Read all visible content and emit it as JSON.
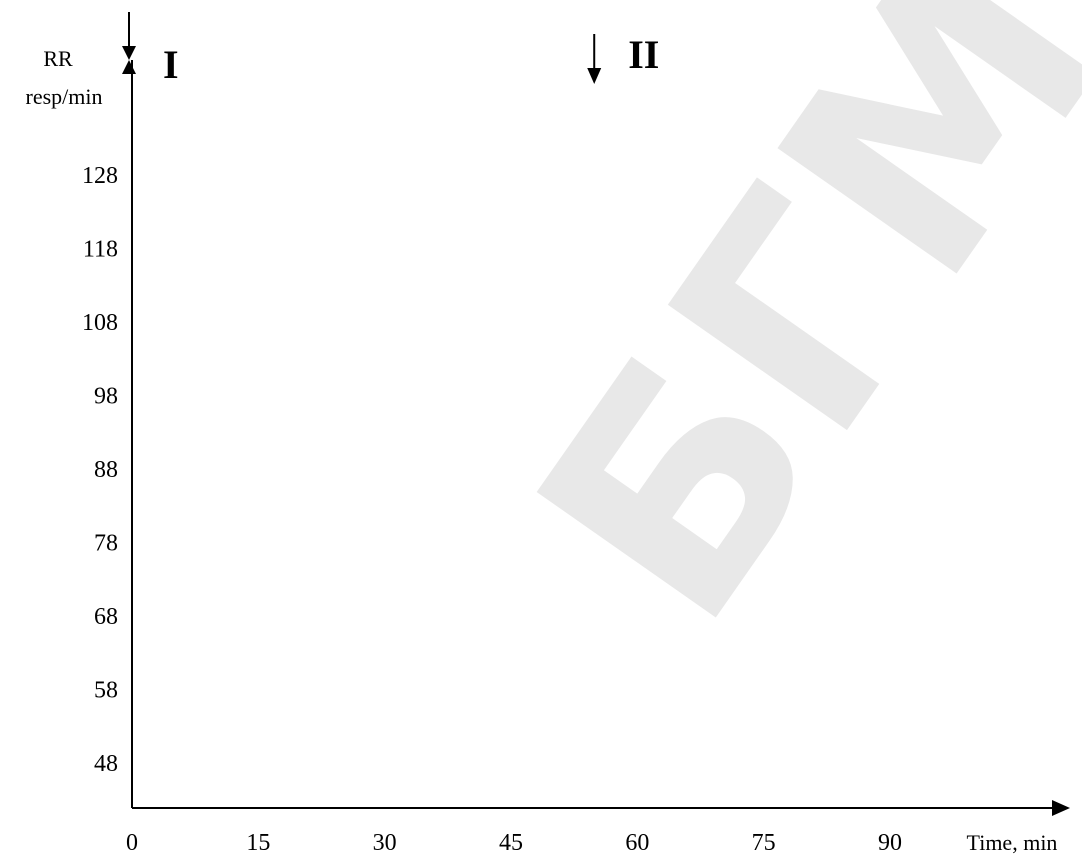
{
  "chart_data": {
    "type": "line",
    "title": "",
    "ylabel_line1": "RR",
    "ylabel_line2": "resp/min",
    "xlabel": "Time, min",
    "x_ticks": [
      "0",
      "15",
      "30",
      "45",
      "60",
      "75",
      "90"
    ],
    "y_ticks": [
      "48",
      "58",
      "68",
      "78",
      "88",
      "98",
      "108",
      "118",
      "128"
    ],
    "x_tick_values": [
      0,
      15,
      30,
      45,
      60,
      75,
      90
    ],
    "y_tick_values": [
      48,
      58,
      68,
      78,
      88,
      98,
      108,
      118,
      128
    ],
    "xlim": [
      0,
      110
    ],
    "ylim": [
      38,
      138
    ],
    "grid": false,
    "series": [],
    "annotations": [
      {
        "label": "I",
        "x": 0,
        "arrow": "down-up"
      },
      {
        "label": "II",
        "x": 55,
        "arrow": "down"
      }
    ]
  },
  "watermark": {
    "text": "БГМУ",
    "color": "#e6e6e6"
  },
  "colors": {
    "axis": "#000000",
    "background": "#ffffff"
  }
}
